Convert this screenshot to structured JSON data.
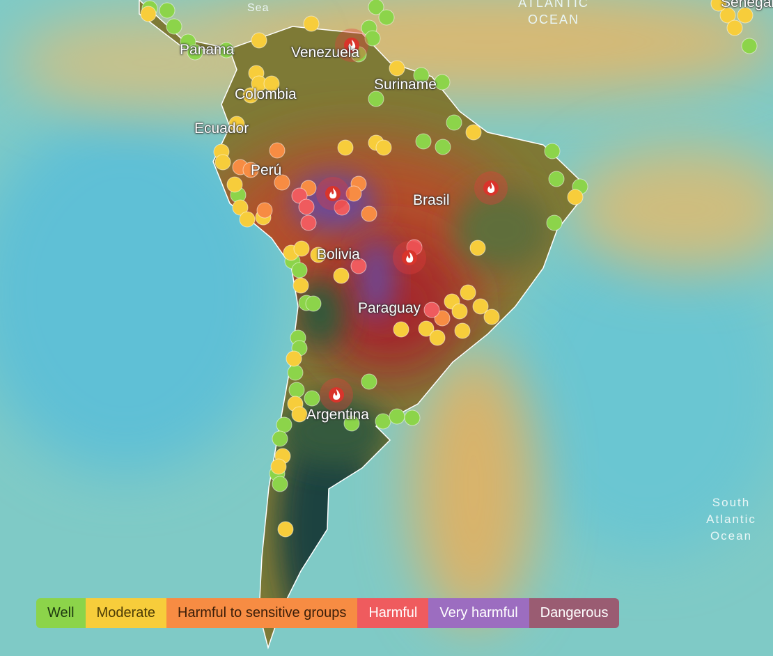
{
  "map": {
    "labels": {
      "sea": "Sea",
      "atlantic_ocean": "ATLANTIC OCEAN",
      "senegal": "Senegal",
      "panama": "Panama",
      "venezuela": "Venezuela",
      "colombia": "Colombia",
      "suriname": "Suriname",
      "ecuador": "Ecuador",
      "peru": "Perú",
      "brasil": "Brasil",
      "bolivia": "Bolivia",
      "paraguay": "Paraguay",
      "argentina": "Argentina",
      "south_atlantic_ocean": "South Atlantic Ocean"
    }
  },
  "legend": [
    {
      "label": "Well",
      "color": "#8cd44a"
    },
    {
      "label": "Moderate",
      "color": "#f7cd3b"
    },
    {
      "label": "Harmful to sensitive groups",
      "color": "#f78c43"
    },
    {
      "label": "Harmful",
      "color": "#ef5b5e"
    },
    {
      "label": "Very harmful",
      "color": "#9c6dc0"
    },
    {
      "label": "Dangerous",
      "color": "#9a5c72"
    }
  ]
}
